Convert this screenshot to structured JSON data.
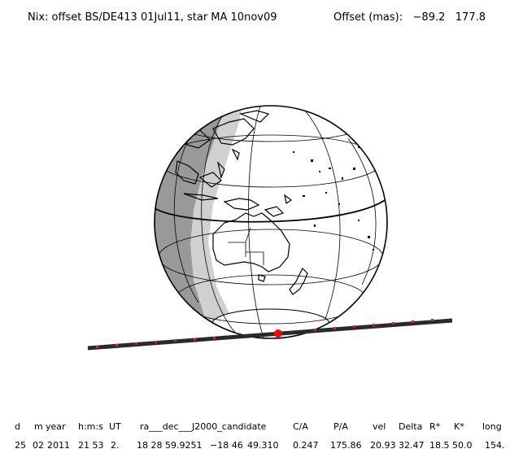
{
  "header": {
    "title": "Nix: offset BS/DE413 01Jul11, star MA 10nov09",
    "offset_label": "Offset (mas):",
    "offset_x": "−89.2",
    "offset_y": "177.8"
  },
  "map": {
    "projection": "orthographic globe",
    "center": "Australia / Pacific",
    "night_shading": true,
    "colors": {
      "night": "#999999",
      "twilight": "#d0d0d0",
      "day": "#ffffff",
      "path": "#2a2a2a",
      "path_ticks": "#dd2222",
      "event": "#ff0000"
    }
  },
  "table": {
    "headers": [
      "d",
      "m",
      "year",
      "h:m:s",
      "UT",
      "ra___dec___J2000_candidate",
      "C/A",
      "P/A",
      "vel",
      "Delta",
      "R*",
      "K*",
      "long"
    ],
    "row": [
      "25",
      "02",
      "2011",
      "21 53",
      "2.",
      "18 28 59.9251",
      "−18 46",
      "49.310",
      "0.247",
      "175.86",
      "20.93",
      "32.47",
      "18.5",
      "50.0",
      "154."
    ]
  }
}
